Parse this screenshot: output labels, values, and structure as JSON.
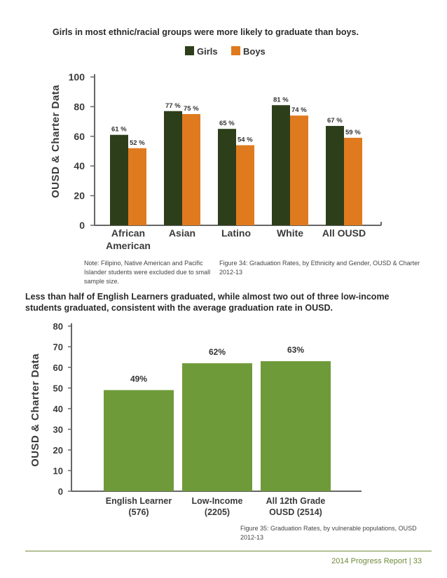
{
  "headline_1": "Girls in most ethnic/racial groups were more likely to graduate than boys.",
  "headline_2": "Less than half of English Learners graduated, while almost two out of three low-income students graduated, consistent with the average graduation rate in OUSD.",
  "note_1": "Note: Filipino, Native American and Pacific Islander students were excluded due to small sample size.",
  "caption_1": "Figure 34: Graduation Rates, by Ethnicity and Gender, OUSD & Charter 2012-13",
  "caption_2": "Figure 35: Graduation Rates, by vulnerable populations, OUSD 2012-13",
  "footer": {
    "report": "2014 Progress Report",
    "page": "33"
  },
  "colors": {
    "girls": "#2d3f1a",
    "boys": "#e07a1f",
    "green": "#6f9a3a",
    "axis": "#666666",
    "text": "#333333"
  },
  "chart_data": [
    {
      "type": "bar",
      "ylabel": "OUSD & Charter Data",
      "ylim": [
        0,
        100
      ],
      "yticks": [
        0,
        20,
        40,
        60,
        80,
        100
      ],
      "legend": "top",
      "categories": [
        [
          "African",
          "American"
        ],
        [
          "Asian"
        ],
        [
          "Latino"
        ],
        [
          "White"
        ],
        [
          "All OUSD"
        ]
      ],
      "series": [
        {
          "name": "Girls",
          "values": [
            61,
            77,
            65,
            81,
            67
          ],
          "labels": [
            "61 %",
            "77 %",
            "65 %",
            "81 %",
            "67 %"
          ]
        },
        {
          "name": "Boys",
          "values": [
            52,
            75,
            54,
            74,
            59
          ],
          "labels": [
            "52 %",
            "75 %",
            "54 %",
            "74 %",
            "59 %"
          ]
        }
      ]
    },
    {
      "type": "bar",
      "ylabel": "OUSD & Charter Data",
      "ylim": [
        0,
        80
      ],
      "yticks": [
        0,
        10,
        20,
        30,
        40,
        50,
        60,
        70,
        80
      ],
      "categories": [
        [
          "English Learner",
          "(576)"
        ],
        [
          "Low-Income",
          "(2205)"
        ],
        [
          "All 12th Grade",
          "OUSD (2514)"
        ]
      ],
      "values": [
        49,
        62,
        63
      ],
      "labels": [
        "49%",
        "62%",
        "63%"
      ]
    }
  ]
}
